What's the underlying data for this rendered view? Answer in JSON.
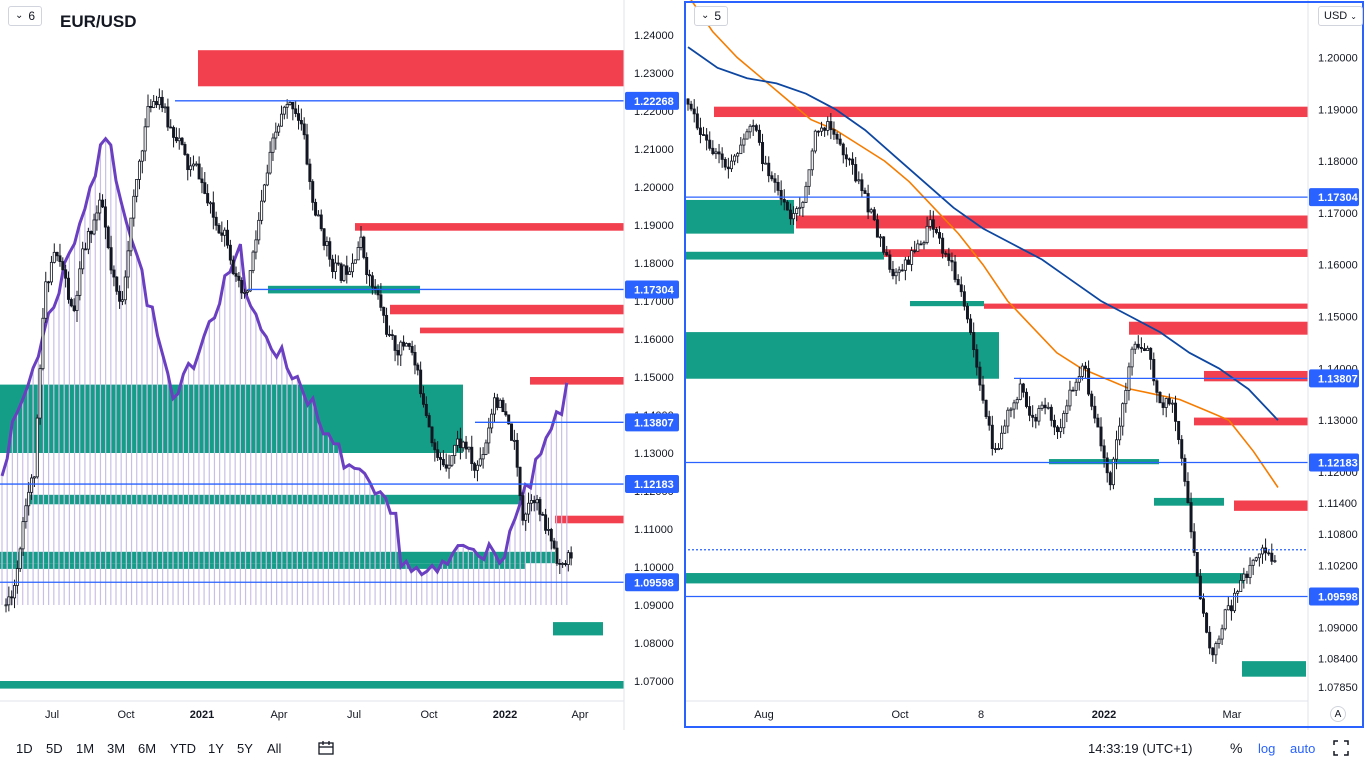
{
  "left_chart": {
    "symbol": "EUR/USD",
    "interval_label": "6",
    "price_axis": [
      "1.24000",
      "1.23000",
      "1.22000",
      "1.21000",
      "1.20000",
      "1.19000",
      "1.18000",
      "1.17000",
      "1.16000",
      "1.15000",
      "1.14000",
      "1.13000",
      "1.12000",
      "1.11000",
      "1.10000",
      "1.09000",
      "1.08000",
      "1.07000"
    ],
    "price_badges": [
      "1.22268",
      "1.17304",
      "1.13807",
      "1.12183",
      "1.09598"
    ],
    "time_axis": [
      "Jul",
      "Oct",
      "2021",
      "Apr",
      "Jul",
      "Oct",
      "2022",
      "Apr"
    ]
  },
  "right_chart": {
    "interval_label": "5",
    "currency_label": "USD",
    "price_axis": [
      "1.20000",
      "1.19000",
      "1.18000",
      "1.17000",
      "1.16000",
      "1.15000",
      "1.14000",
      "1.13000",
      "1.12000",
      "1.11400",
      "1.10800",
      "1.10200",
      "1.09000",
      "1.08400",
      "1.07850"
    ],
    "price_badges": [
      "1.17304",
      "1.13807",
      "1.12183",
      "1.09598"
    ],
    "time_axis": [
      "Aug",
      "Oct",
      "8",
      "2022",
      "Mar"
    ],
    "auto_scale_label": "A"
  },
  "bottom_toolbar": {
    "ranges": [
      "1D",
      "5D",
      "1M",
      "3M",
      "6M",
      "YTD",
      "1Y",
      "5Y",
      "All"
    ],
    "time": "14:33:19 (UTC+1)",
    "percent": "%",
    "log": "log",
    "auto": "auto"
  },
  "colors": {
    "supply_zone": "#f23645",
    "demand_zone": "#089981",
    "level_line": "#2962ff",
    "badge_bg": "#2962ff",
    "volume_line": "#6a3fc2",
    "ma_fast": "#f57c00",
    "ma_slow": "#0d47a1"
  },
  "chart_data": [
    {
      "type": "candlestick",
      "title": "EUR/USD",
      "ylim": [
        1.065,
        1.245
      ],
      "levels": [
        1.22268,
        1.17304,
        1.13807,
        1.12183,
        1.09598
      ],
      "supply_zones": [
        [
          1.2265,
          1.236
        ],
        [
          1.1885,
          1.1905
        ],
        [
          1.1665,
          1.169
        ],
        [
          1.1615,
          1.163
        ],
        [
          1.148,
          1.15
        ],
        [
          1.1115,
          1.1135
        ]
      ],
      "demand_zones": [
        [
          1.13,
          1.148
        ],
        [
          1.1165,
          1.119
        ],
        [
          1.172,
          1.174
        ],
        [
          1.101,
          1.104
        ],
        [
          1.0995,
          1.101
        ],
        [
          1.082,
          1.0855
        ],
        [
          1.068,
          1.07
        ]
      ],
      "close_path": [
        1.09,
        1.096,
        1.117,
        1.125,
        1.172,
        1.183,
        1.178,
        1.165,
        1.182,
        1.19,
        1.196,
        1.177,
        1.168,
        1.19,
        1.208,
        1.222,
        1.224,
        1.216,
        1.213,
        1.205,
        1.205,
        1.196,
        1.19,
        1.188,
        1.175,
        1.17,
        1.185,
        1.2,
        1.213,
        1.22,
        1.222,
        1.215,
        1.196,
        1.188,
        1.18,
        1.177,
        1.18,
        1.186,
        1.175,
        1.17,
        1.16,
        1.157,
        1.16,
        1.15,
        1.14,
        1.128,
        1.127,
        1.133,
        1.132,
        1.125,
        1.132,
        1.145,
        1.14,
        1.133,
        1.113,
        1.12,
        1.112,
        1.107,
        1.099,
        1.104
      ]
    },
    {
      "type": "candlestick",
      "ylim": [
        1.076,
        1.208
      ],
      "levels": [
        1.17304,
        1.13807,
        1.12183,
        1.105,
        1.09598
      ],
      "supply_zones": [
        [
          1.1885,
          1.1905
        ],
        [
          1.167,
          1.1695
        ],
        [
          1.1615,
          1.163
        ],
        [
          1.1515,
          1.1525
        ],
        [
          1.1465,
          1.149
        ],
        [
          1.1375,
          1.1395
        ],
        [
          1.129,
          1.1305
        ],
        [
          1.1125,
          1.1145
        ]
      ],
      "demand_zones": [
        [
          1.166,
          1.1725
        ],
        [
          1.161,
          1.1625
        ],
        [
          1.152,
          1.153
        ],
        [
          1.138,
          1.147
        ],
        [
          1.1215,
          1.1225
        ],
        [
          1.1135,
          1.115
        ],
        [
          1.0985,
          1.1005
        ],
        [
          1.0805,
          1.0835
        ]
      ],
      "close_path": [
        1.192,
        1.186,
        1.182,
        1.178,
        1.181,
        1.189,
        1.179,
        1.176,
        1.168,
        1.173,
        1.185,
        1.188,
        1.183,
        1.178,
        1.172,
        1.165,
        1.158,
        1.16,
        1.163,
        1.168,
        1.163,
        1.158,
        1.15,
        1.136,
        1.123,
        1.131,
        1.136,
        1.13,
        1.133,
        1.127,
        1.136,
        1.141,
        1.129,
        1.117,
        1.132,
        1.146,
        1.143,
        1.134,
        1.132,
        1.118,
        1.098,
        1.084,
        1.092,
        1.096,
        1.102,
        1.106,
        1.102
      ],
      "ma_fast": [
        1.212,
        1.205,
        1.2,
        1.196,
        1.192,
        1.188,
        1.186,
        1.183,
        1.18,
        1.176,
        1.171,
        1.166,
        1.16,
        1.153,
        1.148,
        1.143,
        1.14,
        1.138,
        1.136,
        1.135,
        1.134,
        1.132,
        1.13,
        1.124,
        1.117
      ],
      "ma_slow": [
        1.202,
        1.198,
        1.196,
        1.195,
        1.193,
        1.19,
        1.186,
        1.181,
        1.176,
        1.171,
        1.167,
        1.164,
        1.161,
        1.157,
        1.153,
        1.15,
        1.147,
        1.143,
        1.14,
        1.136,
        1.13
      ]
    }
  ]
}
